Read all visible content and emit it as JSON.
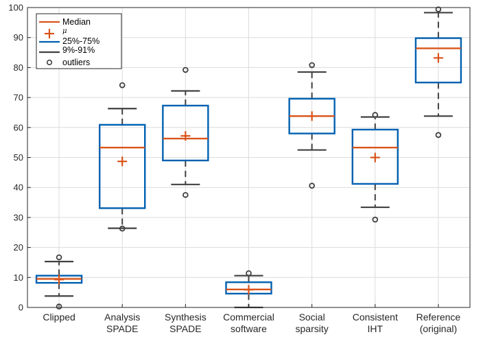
{
  "chart_data": {
    "type": "boxplot",
    "title": "",
    "xlabel": "",
    "ylabel": "",
    "ylim": [
      0,
      100
    ],
    "yticks": [
      0,
      10,
      20,
      30,
      40,
      50,
      60,
      70,
      80,
      90,
      100
    ],
    "grid": true,
    "legend_position": "top-left",
    "legend": [
      {
        "label": "Median",
        "marker": "line",
        "color": "#d95319"
      },
      {
        "label": "μ",
        "marker": "plus",
        "color": "#d95319"
      },
      {
        "label": "25%-75%",
        "marker": "line",
        "color": "#0060b0"
      },
      {
        "label": "9%-91%",
        "marker": "line",
        "color": "#404040"
      },
      {
        "label": "outliers",
        "marker": "circle",
        "color": "#404040"
      }
    ],
    "colors": {
      "median": "#d95319",
      "mean": "#d95319",
      "box": "#0060b0",
      "whisker": "#404040",
      "outlier": "#404040"
    },
    "categories": [
      [
        "Clipped"
      ],
      [
        "Analysis",
        "SPADE"
      ],
      [
        "Synthesis",
        "SPADE"
      ],
      [
        "Commercial",
        "software"
      ],
      [
        "Social",
        "sparsity"
      ],
      [
        "Consistent",
        "IHT"
      ],
      [
        "Reference",
        "(original)"
      ]
    ],
    "boxes": [
      {
        "whisker_low": 3.8,
        "q1": 8.2,
        "median": 9.5,
        "q3": 10.6,
        "whisker_high": 15.3,
        "mean": 9.3,
        "outliers": [
          0.3,
          16.7
        ]
      },
      {
        "whisker_low": 26.4,
        "q1": 33.1,
        "median": 53.3,
        "q3": 60.9,
        "whisker_high": 66.3,
        "mean": 48.7,
        "outliers": [
          26.3,
          74.1
        ]
      },
      {
        "whisker_low": 41.0,
        "q1": 49.0,
        "median": 56.3,
        "q3": 67.3,
        "whisker_high": 72.2,
        "mean": 57.2,
        "outliers": [
          37.5,
          79.2
        ]
      },
      {
        "whisker_low": 0.0,
        "q1": 4.6,
        "median": 6.0,
        "q3": 8.4,
        "whisker_high": 10.6,
        "mean": 5.9,
        "outliers": [
          11.4
        ]
      },
      {
        "whisker_low": 52.5,
        "q1": 58.0,
        "median": 63.8,
        "q3": 69.6,
        "whisker_high": 78.5,
        "mean": 63.8,
        "outliers": [
          40.6,
          80.8
        ]
      },
      {
        "whisker_low": 33.4,
        "q1": 41.2,
        "median": 53.3,
        "q3": 59.3,
        "whisker_high": 63.5,
        "mean": 50.0,
        "outliers": [
          29.3,
          64.2
        ]
      },
      {
        "whisker_low": 63.8,
        "q1": 75.0,
        "median": 86.4,
        "q3": 89.8,
        "whisker_high": 98.3,
        "mean": 83.2,
        "outliers": [
          57.5,
          99.4
        ]
      }
    ]
  }
}
